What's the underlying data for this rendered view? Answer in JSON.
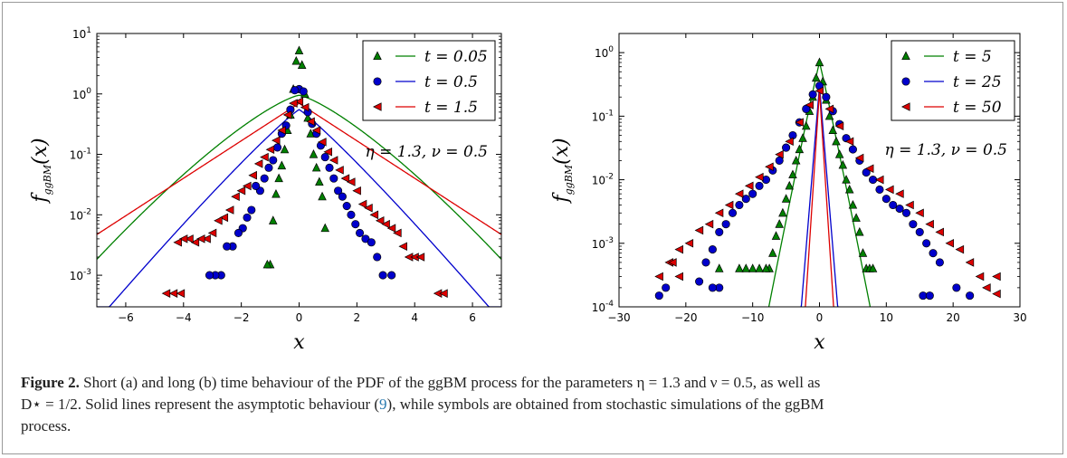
{
  "chart_data": [
    {
      "panel": "a",
      "type": "scatter",
      "yscale": "log",
      "xlim": [
        -7,
        7
      ],
      "ylim": [
        0.0003,
        10
      ],
      "xticks": [
        -6,
        -4,
        -2,
        0,
        2,
        4,
        6
      ],
      "yticks": [
        {
          "value": 0.001,
          "base": "10",
          "exp": "-3"
        },
        {
          "value": 0.01,
          "base": "10",
          "exp": "-2"
        },
        {
          "value": 0.1,
          "base": "10",
          "exp": "-1"
        },
        {
          "value": 1,
          "base": "10",
          "exp": "0"
        },
        {
          "value": 10,
          "base": "10",
          "exp": "1"
        }
      ],
      "xlabel": "x",
      "ylabel": "f_ggBM(x)",
      "annotation": "η = 1.3,  ν = 0.5",
      "legend_position": "top-right",
      "series": [
        {
          "name": "t = 0.05",
          "color": "#008000",
          "marker": "triangle-up",
          "theory": {
            "a": 0.95,
            "b": 1.71,
            "p": 1.3,
            "ymin": 0.0003
          },
          "points": [
            [
              0,
              5.2
            ],
            [
              -0.1,
              3.5
            ],
            [
              0.1,
              3.0
            ],
            [
              -0.2,
              1.2
            ],
            [
              0.2,
              1.0
            ],
            [
              -0.3,
              0.45
            ],
            [
              0.3,
              0.4
            ],
            [
              -0.4,
              0.25
            ],
            [
              0.4,
              0.22
            ],
            [
              -0.5,
              0.12
            ],
            [
              0.5,
              0.1
            ],
            [
              -0.6,
              0.065
            ],
            [
              0.6,
              0.06
            ],
            [
              -0.7,
              0.04
            ],
            [
              0.7,
              0.035
            ],
            [
              -0.8,
              0.022
            ],
            [
              0.8,
              0.02
            ],
            [
              -0.9,
              0.008
            ],
            [
              0.9,
              0.006
            ],
            [
              -1.0,
              0.0015
            ],
            [
              -1.1,
              0.0015
            ]
          ]
        },
        {
          "name": "t = 0.5",
          "color": "#0000cc",
          "marker": "circle",
          "theory": {
            "a": 0.55,
            "b": 1.05,
            "p": 1.1,
            "ymin": 0.0003
          },
          "points": [
            [
              0,
              1.2
            ],
            [
              -0.15,
              1.15
            ],
            [
              0.15,
              1.1
            ],
            [
              -0.3,
              0.55
            ],
            [
              0.3,
              0.5
            ],
            [
              -0.45,
              0.3
            ],
            [
              0.45,
              0.32
            ],
            [
              -0.6,
              0.22
            ],
            [
              0.6,
              0.22
            ],
            [
              -0.75,
              0.13
            ],
            [
              0.75,
              0.14
            ],
            [
              -0.9,
              0.08
            ],
            [
              0.9,
              0.09
            ],
            [
              -1.05,
              0.06
            ],
            [
              1.05,
              0.06
            ],
            [
              -1.2,
              0.04
            ],
            [
              1.2,
              0.04
            ],
            [
              -1.35,
              0.025
            ],
            [
              1.35,
              0.025
            ],
            [
              -1.5,
              0.03
            ],
            [
              1.5,
              0.02
            ],
            [
              -1.65,
              0.012
            ],
            [
              1.65,
              0.014
            ],
            [
              -1.8,
              0.009
            ],
            [
              1.8,
              0.01
            ],
            [
              -1.95,
              0.006
            ],
            [
              1.95,
              0.007
            ],
            [
              -2.1,
              0.005
            ],
            [
              2.1,
              0.005
            ],
            [
              -2.3,
              0.003
            ],
            [
              2.3,
              0.004
            ],
            [
              -2.5,
              0.003
            ],
            [
              2.5,
              0.0035
            ],
            [
              -2.7,
              0.001
            ],
            [
              2.7,
              0.002
            ],
            [
              -2.9,
              0.001
            ],
            [
              2.9,
              0.001
            ],
            [
              -3.1,
              0.001
            ],
            [
              3.2,
              0.001
            ]
          ]
        },
        {
          "name": "t = 1.5",
          "color": "#dd0000",
          "marker": "triangle-left",
          "theory": {
            "a": 0.7,
            "b": 1.4,
            "p": 1.0,
            "ymin": 0.0003
          },
          "points": [
            [
              0,
              0.75
            ],
            [
              -0.2,
              0.7
            ],
            [
              0.2,
              0.6
            ],
            [
              -0.4,
              0.45
            ],
            [
              0.4,
              0.35
            ],
            [
              -0.6,
              0.25
            ],
            [
              0.6,
              0.25
            ],
            [
              -0.8,
              0.17
            ],
            [
              0.8,
              0.16
            ],
            [
              -1.0,
              0.12
            ],
            [
              1.0,
              0.11
            ],
            [
              -1.2,
              0.09
            ],
            [
              1.2,
              0.08
            ],
            [
              -1.4,
              0.07
            ],
            [
              1.4,
              0.055
            ],
            [
              -1.6,
              0.045
            ],
            [
              1.6,
              0.04
            ],
            [
              -1.8,
              0.03
            ],
            [
              1.8,
              0.035
            ],
            [
              -2.0,
              0.025
            ],
            [
              2.0,
              0.025
            ],
            [
              -2.2,
              0.02
            ],
            [
              2.2,
              0.015
            ],
            [
              -2.4,
              0.012
            ],
            [
              2.4,
              0.013
            ],
            [
              -2.6,
              0.009
            ],
            [
              2.6,
              0.01
            ],
            [
              -2.8,
              0.008
            ],
            [
              2.8,
              0.008
            ],
            [
              -3.0,
              0.005
            ],
            [
              3.0,
              0.007
            ],
            [
              -3.2,
              0.004
            ],
            [
              3.2,
              0.006
            ],
            [
              -3.4,
              0.004
            ],
            [
              3.4,
              0.005
            ],
            [
              -3.6,
              0.0035
            ],
            [
              3.6,
              0.003
            ],
            [
              -3.8,
              0.004
            ],
            [
              3.8,
              0.002
            ],
            [
              -4.0,
              0.004
            ],
            [
              4.0,
              0.002
            ],
            [
              -4.2,
              0.0035
            ],
            [
              4.2,
              0.002
            ],
            [
              -4.6,
              0.0005
            ],
            [
              -4.35,
              0.0005
            ],
            [
              -4.1,
              0.0005
            ],
            [
              4.8,
              0.0005
            ],
            [
              5.0,
              0.0005
            ]
          ]
        }
      ]
    },
    {
      "panel": "b",
      "type": "scatter",
      "yscale": "log",
      "xlim": [
        -30,
        30
      ],
      "ylim": [
        0.0001,
        2
      ],
      "xticks": [
        -30,
        -20,
        -10,
        0,
        10,
        20,
        30
      ],
      "yticks": [
        {
          "value": 0.0001,
          "base": "10",
          "exp": "-4"
        },
        {
          "value": 0.001,
          "base": "10",
          "exp": "-3"
        },
        {
          "value": 0.01,
          "base": "10",
          "exp": "-2"
        },
        {
          "value": 0.1,
          "base": "10",
          "exp": "-1"
        },
        {
          "value": 1,
          "base": "10",
          "exp": "0"
        }
      ],
      "xlabel": "x",
      "ylabel": "f_ggBM(x)",
      "annotation": "η = 1.3,  ν = 0.5",
      "legend_position": "top-right",
      "series": [
        {
          "name": "t = 5",
          "color": "#008000",
          "marker": "triangle-up",
          "theory": {
            "a": 0.7,
            "b": 0.95,
            "p": 1.05,
            "ymin": 9e-05
          },
          "points": [
            [
              0,
              0.7
            ],
            [
              -0.5,
              0.4
            ],
            [
              0.5,
              0.35
            ],
            [
              -1,
              0.2
            ],
            [
              1,
              0.18
            ],
            [
              -1.5,
              0.12
            ],
            [
              1.5,
              0.1
            ],
            [
              -2,
              0.07
            ],
            [
              2,
              0.06
            ],
            [
              -2.5,
              0.045
            ],
            [
              2.5,
              0.04
            ],
            [
              -3,
              0.03
            ],
            [
              3,
              0.025
            ],
            [
              -3.5,
              0.02
            ],
            [
              3.5,
              0.017
            ],
            [
              -4,
              0.012
            ],
            [
              4,
              0.01
            ],
            [
              -4.5,
              0.008
            ],
            [
              4.5,
              0.007
            ],
            [
              -5,
              0.005
            ],
            [
              5,
              0.004
            ],
            [
              -5.5,
              0.003
            ],
            [
              5.5,
              0.0025
            ],
            [
              -6,
              0.002
            ],
            [
              6,
              0.0015
            ],
            [
              -6.5,
              0.0013
            ],
            [
              6.5,
              0.0007
            ],
            [
              -7,
              0.0007
            ],
            [
              7,
              0.0004
            ],
            [
              -7.5,
              0.0004
            ],
            [
              7.5,
              0.0004
            ],
            [
              -8,
              0.0004
            ],
            [
              8,
              0.0004
            ],
            [
              -9,
              0.0004
            ],
            [
              -10,
              0.0004
            ],
            [
              -11,
              0.0004
            ],
            [
              -12,
              0.0004
            ],
            [
              -15,
              0.0004
            ]
          ]
        },
        {
          "name": "t = 25",
          "color": "#0000cc",
          "marker": "circle",
          "theory": {
            "a": 0.3,
            "b": 0.34,
            "p": 1.0,
            "ymin": 9e-05
          },
          "points": [
            [
              0,
              0.3
            ],
            [
              -1,
              0.22
            ],
            [
              1,
              0.2
            ],
            [
              -2,
              0.13
            ],
            [
              2,
              0.12
            ],
            [
              -3,
              0.08
            ],
            [
              3,
              0.075
            ],
            [
              -4,
              0.05
            ],
            [
              4,
              0.045
            ],
            [
              -5,
              0.032
            ],
            [
              5,
              0.03
            ],
            [
              -6,
              0.02
            ],
            [
              6,
              0.02
            ],
            [
              -7,
              0.014
            ],
            [
              7,
              0.013
            ],
            [
              -8,
              0.01
            ],
            [
              8,
              0.01
            ],
            [
              -9,
              0.008
            ],
            [
              9,
              0.007
            ],
            [
              -10,
              0.006
            ],
            [
              10,
              0.005
            ],
            [
              -11,
              0.005
            ],
            [
              11,
              0.004
            ],
            [
              -12,
              0.004
            ],
            [
              12,
              0.0035
            ],
            [
              -13,
              0.003
            ],
            [
              13,
              0.003
            ],
            [
              -14,
              0.002
            ],
            [
              14,
              0.002
            ],
            [
              -15,
              0.0015
            ],
            [
              15,
              0.0015
            ],
            [
              -16,
              0.0008
            ],
            [
              16,
              0.001
            ],
            [
              -17,
              0.0005
            ],
            [
              17,
              0.0007
            ],
            [
              -18,
              0.00025
            ],
            [
              18,
              0.0005
            ],
            [
              -15,
              0.0002
            ],
            [
              -16,
              0.0002
            ],
            [
              -24,
              0.00015
            ],
            [
              -23,
              0.0002
            ],
            [
              15.5,
              0.00015
            ],
            [
              16.5,
              0.00015
            ],
            [
              20.5,
              0.0002
            ],
            [
              22.5,
              0.00015
            ]
          ]
        },
        {
          "name": "t = 50",
          "color": "#dd0000",
          "marker": "triangle-left",
          "theory": {
            "a": 0.25,
            "b": 0.27,
            "p": 1.0,
            "ymin": 9e-05
          },
          "points": [
            [
              0,
              0.25
            ],
            [
              -1.5,
              0.15
            ],
            [
              1.5,
              0.13
            ],
            [
              -3,
              0.08
            ],
            [
              3,
              0.07
            ],
            [
              -4.5,
              0.04
            ],
            [
              4.5,
              0.04
            ],
            [
              -6,
              0.025
            ],
            [
              6,
              0.022
            ],
            [
              -7.5,
              0.016
            ],
            [
              7.5,
              0.015
            ],
            [
              -9,
              0.011
            ],
            [
              9,
              0.01
            ],
            [
              -10.5,
              0.008
            ],
            [
              10.5,
              0.007
            ],
            [
              -12,
              0.006
            ],
            [
              12,
              0.006
            ],
            [
              -13.5,
              0.004
            ],
            [
              13.5,
              0.004
            ],
            [
              -15,
              0.003
            ],
            [
              15,
              0.003
            ],
            [
              -16.5,
              0.002
            ],
            [
              16.5,
              0.002
            ],
            [
              -18,
              0.0016
            ],
            [
              18,
              0.0015
            ],
            [
              -19.5,
              0.001
            ],
            [
              19.5,
              0.001
            ],
            [
              -21,
              0.0008
            ],
            [
              21,
              0.0008
            ],
            [
              -22.5,
              0.0005
            ],
            [
              22.5,
              0.0005
            ],
            [
              -24,
              0.0003
            ],
            [
              24,
              0.0003
            ],
            [
              -21,
              0.0003
            ],
            [
              -22,
              0.0005
            ],
            [
              26.5,
              0.0003
            ],
            [
              25,
              0.0002
            ],
            [
              26.5,
              0.00016
            ]
          ]
        }
      ]
    }
  ],
  "caption": {
    "label": "Figure 2.",
    "line1": " Short (a) and long (b) time behaviour of the PDF of the ggBM process for the parameters η = 1.3 and ν = 0.5, as well as",
    "line2_pre": "D⋆ = 1/2. Solid lines represent the asymptotic behaviour (",
    "line2_ref": "9",
    "line2_post": "), while symbols are obtained from stochastic simulations of the ggBM",
    "line3": "process."
  }
}
